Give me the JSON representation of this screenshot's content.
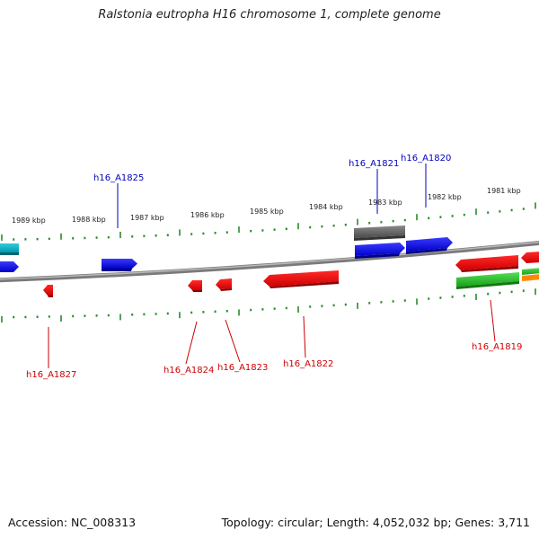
{
  "title": "Ralstonia eutropha H16 chromosome 1, complete genome",
  "footer": {
    "accession": "Accession: NC_008313",
    "summary": "Topology: circular; Length: 4,052,032 bp; Genes: 3,711"
  },
  "kbp_labels": [
    "1989 kbp",
    "1988 kbp",
    "1987 kbp",
    "1986 kbp",
    "1985 kbp",
    "1984 kbp",
    "1983 kbp",
    "1982 kbp",
    "1981 kbp"
  ],
  "gene_labels_top": [
    "h16_A1825",
    "h16_A1821",
    "h16_A1820"
  ],
  "gene_labels_bottom": [
    "h16_A1827",
    "h16_A1824",
    "h16_A1823",
    "h16_A1822",
    "h16_A1819"
  ],
  "colors": {
    "forward": "#0000ee",
    "reverse": "#ee0000",
    "rna": "#22bb22",
    "pseudo": "#666666",
    "cyan": "#11bbcc",
    "orange": "#ff8800",
    "tick": "#2a8a2a",
    "backbone": "#888888",
    "label_blue": "#0000bb",
    "label_red": "#cc0000"
  }
}
